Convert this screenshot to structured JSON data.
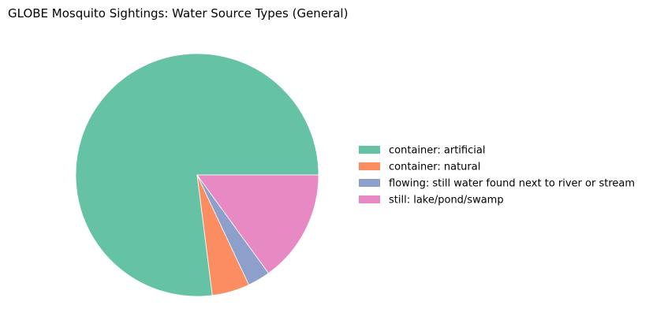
{
  "chart_data": {
    "type": "pie",
    "title": "GLOBE Mosquito Sightings: Water Source Types (General)",
    "categories": [
      "container: artificial",
      "container: natural",
      "flowing: still water found next to river or stream",
      "still: lake/pond/swamp"
    ],
    "values": [
      77.0,
      5.0,
      3.0,
      15.0
    ],
    "colors": [
      "#66c2a5",
      "#fc8d62",
      "#8da0cb",
      "#e78ac3"
    ],
    "start_angle_deg": 0,
    "direction": "counterclockwise",
    "legend_position": "right"
  }
}
